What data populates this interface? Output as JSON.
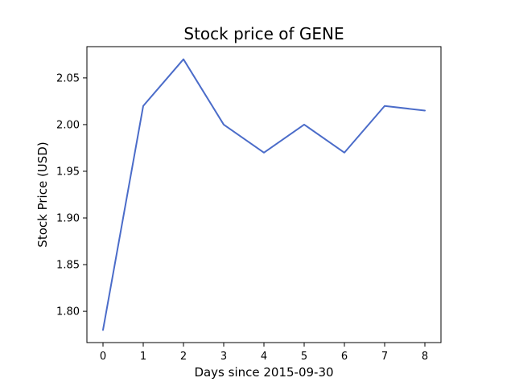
{
  "chart_data": {
    "type": "line",
    "title": "Stock price of GENE",
    "xlabel": "Days since 2015-09-30",
    "ylabel": "Stock Price (USD)",
    "x": [
      0,
      1,
      2,
      3,
      4,
      5,
      6,
      7,
      8
    ],
    "series": [
      {
        "values": [
          1.78,
          2.02,
          2.07,
          2.0,
          1.97,
          2.0,
          1.97,
          2.02,
          2.015
        ],
        "color": "#4b6cc9"
      }
    ],
    "xlim": [
      -0.4,
      8.4
    ],
    "ylim": [
      1.7665,
      2.0835
    ],
    "xticks": [
      0,
      1,
      2,
      3,
      4,
      5,
      6,
      7,
      8
    ],
    "xtick_labels": [
      "0",
      "1",
      "2",
      "3",
      "4",
      "5",
      "6",
      "7",
      "8"
    ],
    "yticks": [
      1.8,
      1.85,
      1.9,
      1.95,
      2.0,
      2.05
    ],
    "ytick_labels": [
      "1.80",
      "1.85",
      "1.90",
      "1.95",
      "2.00",
      "2.05"
    ],
    "grid": false,
    "legend": "none"
  }
}
